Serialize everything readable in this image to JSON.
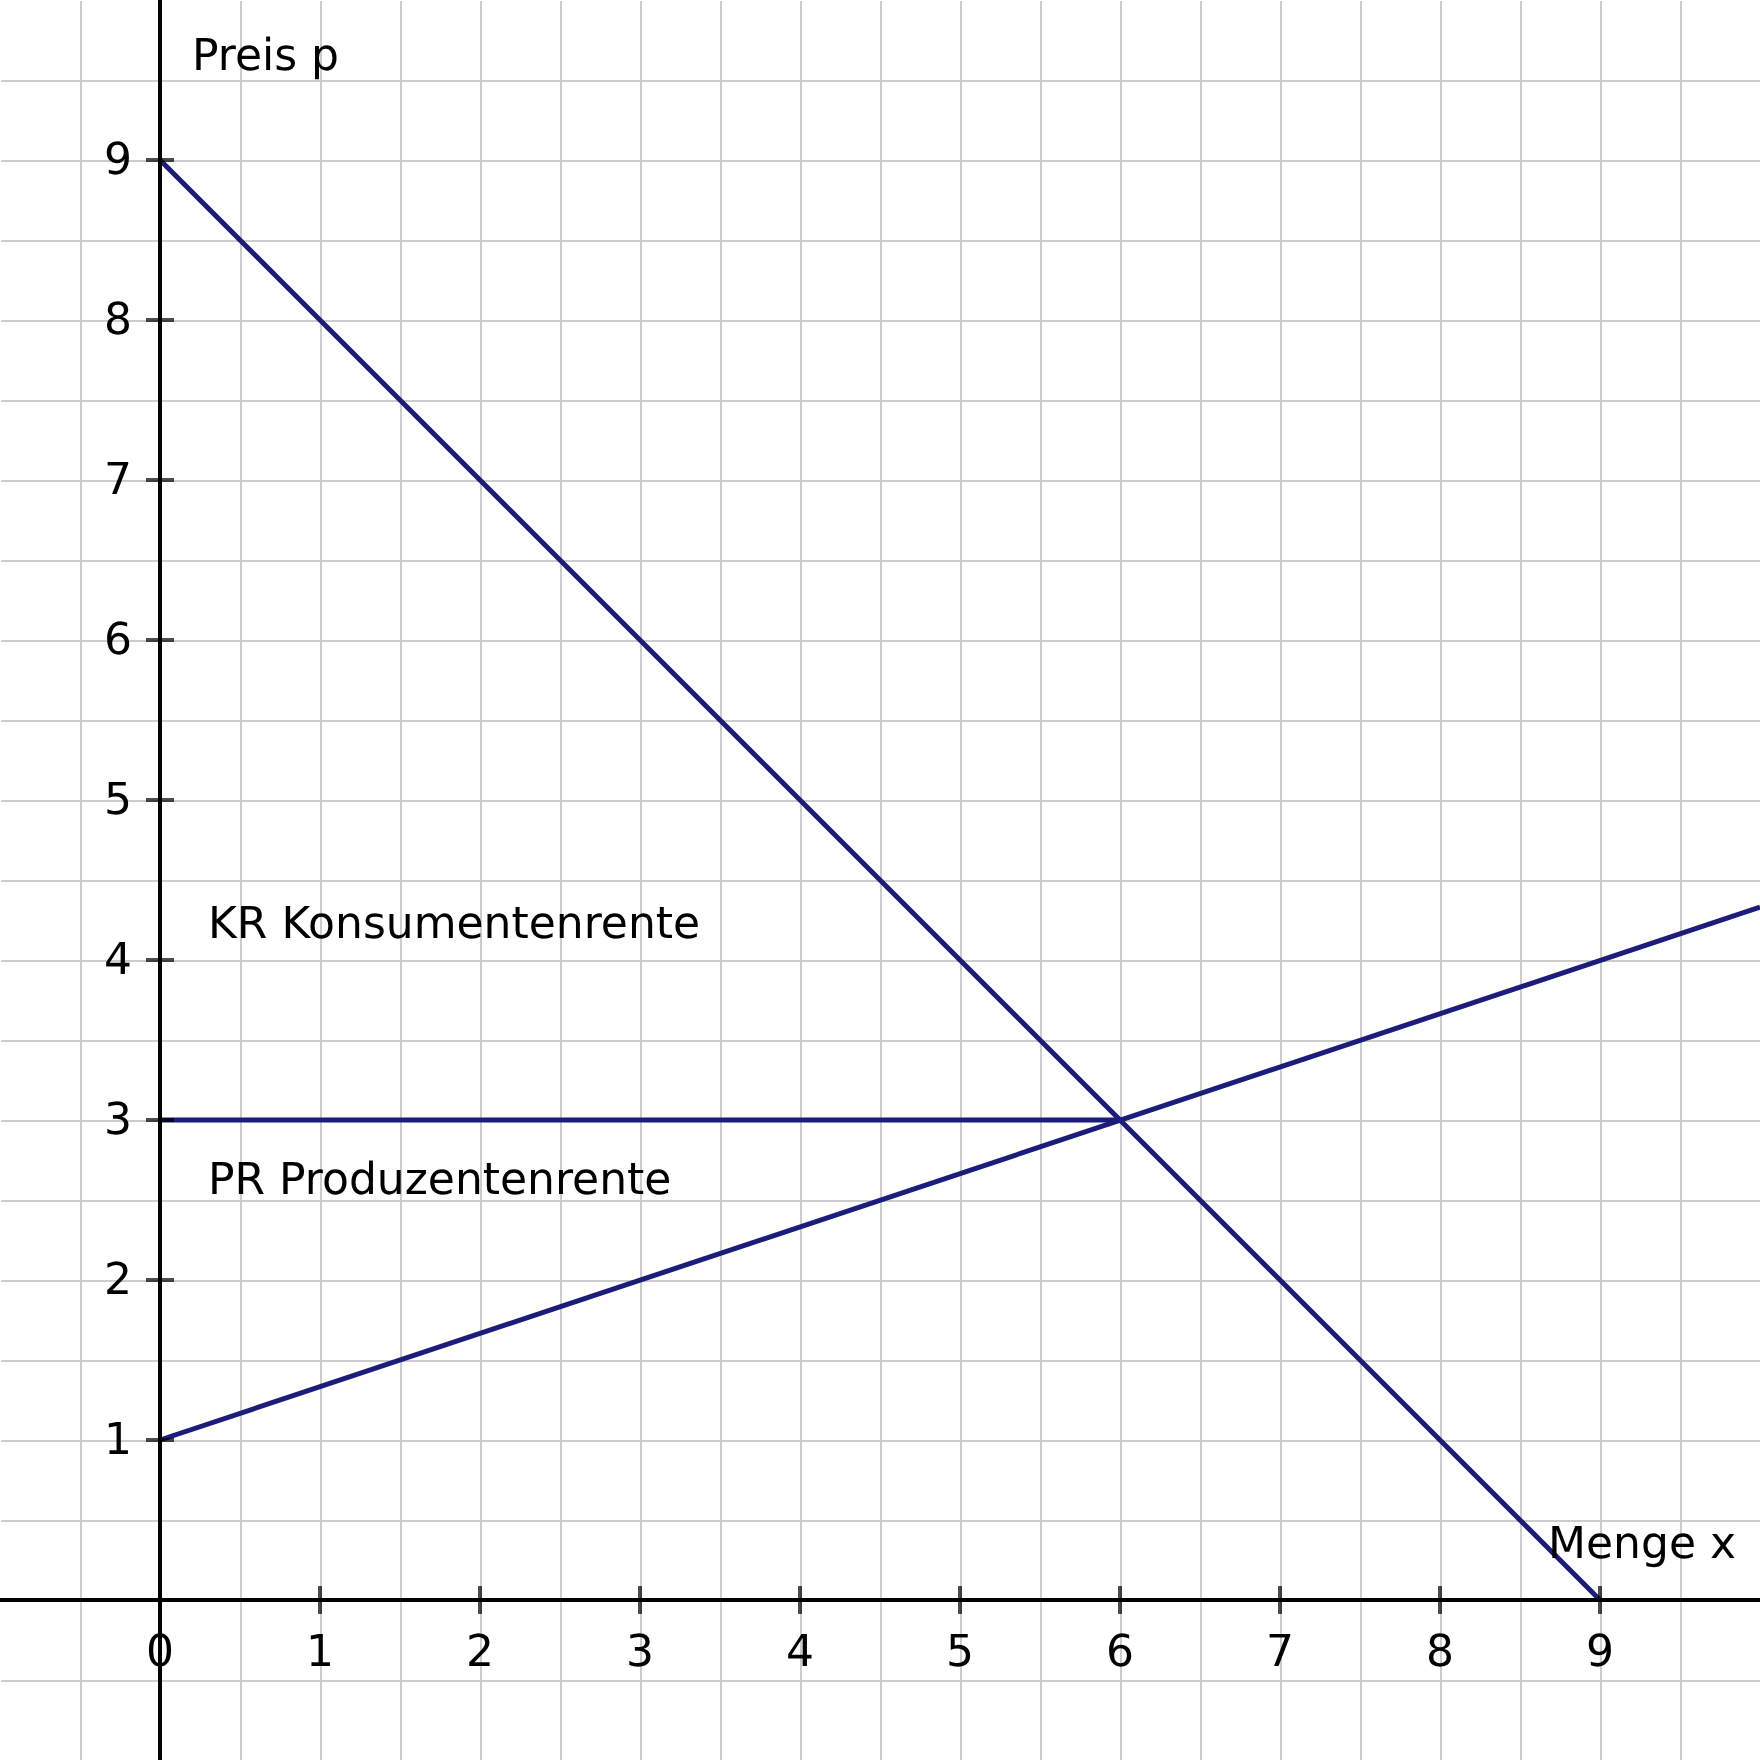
{
  "chart_data": {
    "type": "line",
    "xlabel": "Menge x",
    "ylabel": "Preis p",
    "xlim": [
      -1,
      10
    ],
    "ylim": [
      -1,
      10
    ],
    "xticks": [
      {
        "value": -0.5,
        "label": null
      },
      {
        "value": 0,
        "label": "0"
      },
      {
        "value": 0.5,
        "label": null
      },
      1,
      {
        "value": 1.5,
        "label": null
      },
      2,
      {
        "value": 2.5,
        "label": null
      },
      3,
      {
        "value": 3.5,
        "label": null
      },
      4,
      {
        "value": 4.5,
        "label": null
      },
      5,
      {
        "value": 5.5,
        "label": null
      },
      6,
      {
        "value": 6.5,
        "label": null
      },
      7,
      {
        "value": 7.5,
        "label": null
      },
      8,
      {
        "value": 8.5,
        "label": null
      },
      9,
      {
        "value": 9.5,
        "label": null
      }
    ],
    "yticks": [
      {
        "value": -0.5,
        "label": null
      },
      {
        "value": 0,
        "label": null
      },
      {
        "value": 0.5,
        "label": null
      },
      1,
      {
        "value": 1.5,
        "label": null
      },
      2,
      {
        "value": 2.5,
        "label": null
      },
      3,
      {
        "value": 3.5,
        "label": null
      },
      4,
      {
        "value": 4.5,
        "label": null
      },
      5,
      {
        "value": 5.5,
        "label": null
      },
      6,
      {
        "value": 6.5,
        "label": null
      },
      7,
      {
        "value": 7.5,
        "label": null
      },
      8,
      {
        "value": 8.5,
        "label": null
      },
      9,
      {
        "value": 9.5,
        "label": null
      }
    ],
    "series": [
      {
        "color": "#1c1c7a",
        "x": [
          0,
          9
        ],
        "values": [
          9,
          0
        ]
      },
      {
        "color": "#1c1c7a",
        "x": [
          0,
          10
        ],
        "values": [
          1,
          4.33
        ]
      },
      {
        "color": "#1c1c7a",
        "x": [
          0,
          6
        ],
        "values": [
          3,
          3
        ]
      }
    ],
    "annotations": [
      "KR Konsumentenrente",
      "PR Produzentenrente"
    ],
    "grid": true,
    "marker": "none",
    "line_style": "solid"
  }
}
